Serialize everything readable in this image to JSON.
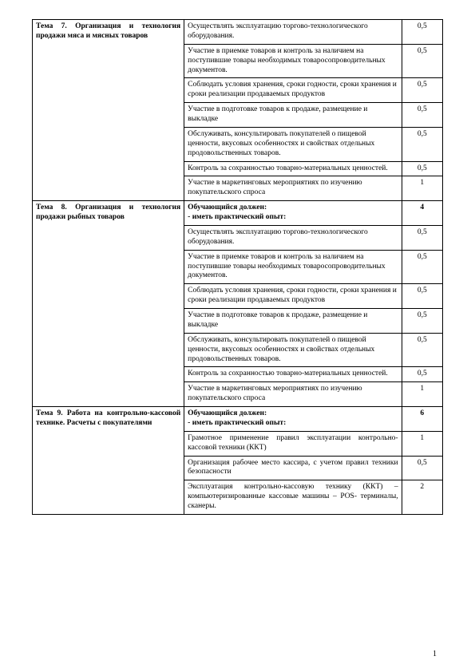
{
  "pageNumber": "1",
  "table": {
    "type": "table",
    "columns": [
      {
        "key": "topic",
        "width": "37%"
      },
      {
        "key": "desc",
        "width": "53%"
      },
      {
        "key": "hours",
        "width": "10%",
        "align": "center"
      }
    ],
    "rows": [
      {
        "topic": "Тема 7. Организация и технология продажи мяса и мясных товаров",
        "desc": "Осуществлять эксплуатацию торгово-технологического оборудования.",
        "hours": "0,5",
        "rowspan": 7
      },
      {
        "desc": "Участие в приемке товаров и контроль за наличием на поступившие товары необходимых товаросопроводительных документов.",
        "hours": "0,5"
      },
      {
        "desc": "Соблюдать условия хранения, сроки годности, сроки хранения и сроки реализации продаваемых продуктов",
        "hours": "0,5"
      },
      {
        "desc": "Участие в подготовке товаров к продаже, размещение и выкладке",
        "hours": "0,5"
      },
      {
        "desc": "Обслуживать, консультировать покупателей о пищевой ценности, вкусовых особенностях и свойствах отдельных продовольственных товаров.",
        "hours": "0,5"
      },
      {
        "desc": "Контроль за сохранностью товарно-материальных ценностей.",
        "hours": "0,5"
      },
      {
        "desc": "Участие в маркетинговых мероприятиях по изучению покупательского спроса",
        "hours": "1"
      },
      {
        "topic": "Тема 8. Организация и технология продажи рыбных товаров",
        "desc": "Обучающийся должен:\n- иметь практический опыт:",
        "hours": "4",
        "rowspan": 8,
        "descBold": true
      },
      {
        "desc": "Осуществлять эксплуатацию торгово-технологического оборудования.",
        "hours": "0,5"
      },
      {
        "desc": "Участие в приемке товаров и контроль за наличием на поступившие товары необходимых товаросопроводительных документов.",
        "hours": "0,5"
      },
      {
        "desc": "Соблюдать условия хранения, сроки годности, сроки хранения и сроки реализации продаваемых продуктов",
        "hours": "0,5"
      },
      {
        "desc": "Участие в подготовке товаров к продаже, размещение и выкладке",
        "hours": "0,5"
      },
      {
        "desc": "Обслуживать, консультировать покупателей о пищевой ценности, вкусовых особенностях и свойствах отдельных продовольственных товаров.",
        "hours": "0,5"
      },
      {
        "desc": "Контроль за сохранностью товарно-материальных ценностей.",
        "hours": "0,5"
      },
      {
        "desc": "Участие в маркетинговых мероприятиях по изучению покупательского спроса",
        "hours": "1"
      },
      {
        "topic": "Тема 9. Работа на контрольно-кассовой технике. Расчеты с покупателями",
        "desc": "Обучающийся должен:\n- иметь практический опыт:",
        "hours": "6",
        "rowspan": 4,
        "descBold": true
      },
      {
        "desc": "Грамотное применение правил эксплуатации контрольно-кассовой техники (ККТ)",
        "hours": "1",
        "justify": true
      },
      {
        "desc": "Организация рабочее место кассира, с учетом правил техники безопасности",
        "hours": "0,5",
        "justify": true
      },
      {
        "desc": "Эксплуатация контрольно-кассовую технику (ККТ) – компьютеризированные кассовые машины – POS- терминалы, сканеры.",
        "hours": "2",
        "justify": true
      }
    ]
  }
}
